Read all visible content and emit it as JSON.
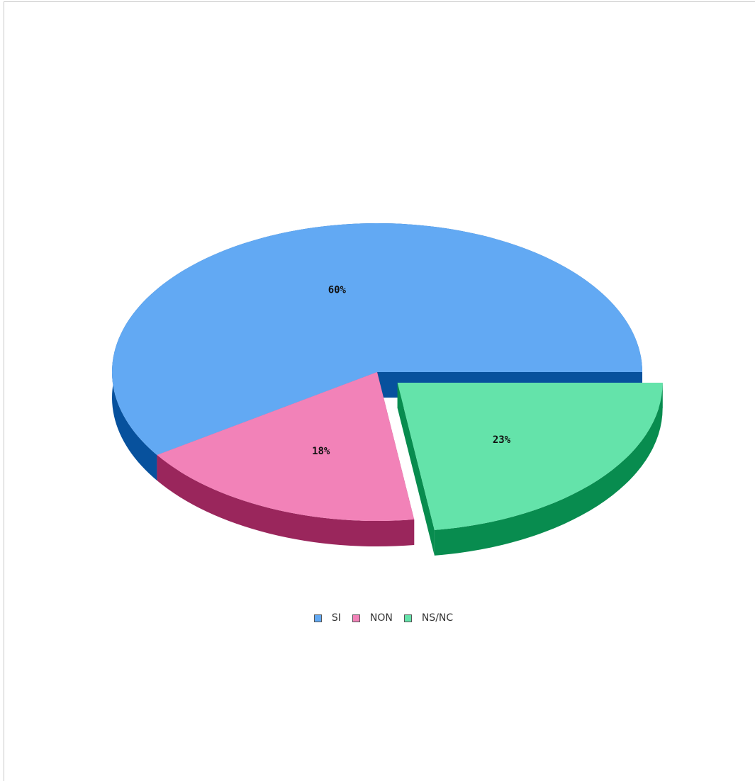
{
  "chart_data": {
    "type": "pie",
    "title": "",
    "categories": [
      "SI",
      "NON",
      "NS/NC"
    ],
    "values": [
      60,
      18,
      23
    ],
    "labels": [
      "60%",
      "18%",
      "23%"
    ],
    "colors": [
      "#62a9f3",
      "#f282b8",
      "#64e3aa"
    ],
    "side_colors": [
      "#07519d",
      "#9a265c",
      "#088c4f"
    ],
    "exploded": [
      false,
      false,
      true
    ],
    "legend_position": "bottom-center",
    "style": "3d"
  }
}
